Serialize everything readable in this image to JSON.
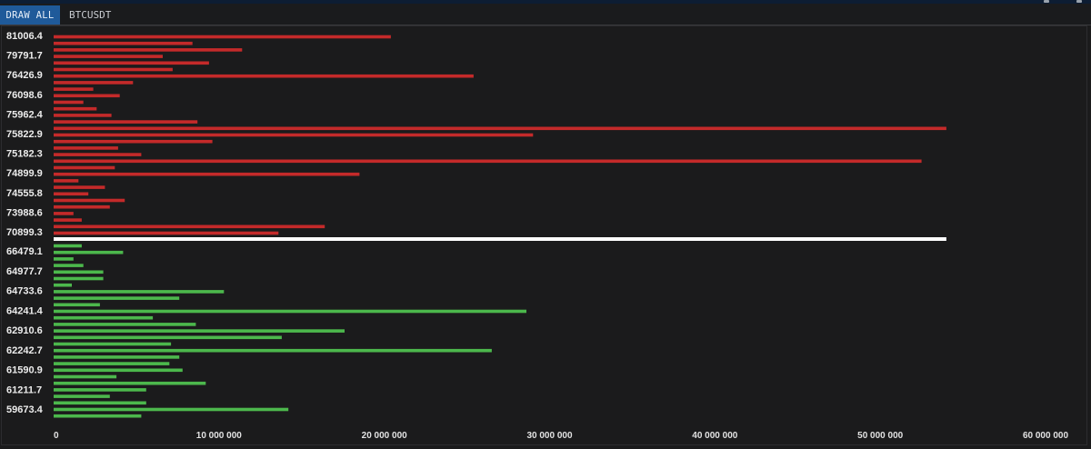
{
  "toolbar": {
    "draw_all_label": "DRAW ALL",
    "symbol_value": "BTCUSDT"
  },
  "colors": {
    "ask": "#c42a2a",
    "bid": "#4cb84c",
    "mid": "#ffffff",
    "background": "#1b1b1c"
  },
  "chart_data": {
    "type": "bar",
    "orientation": "horizontal",
    "title": "",
    "xlabel": "",
    "ylabel": "",
    "xlim": [
      0,
      60000000
    ],
    "x_ticks": [
      0,
      10000000,
      20000000,
      30000000,
      40000000,
      50000000,
      60000000
    ],
    "x_tick_labels": [
      "0",
      "10 000 000",
      "20 000 000",
      "30 000 000",
      "40 000 000",
      "50 000 000",
      "60 000 000"
    ],
    "y_tick_labels": [
      "81006.4",
      "79791.7",
      "76426.9",
      "76098.6",
      "75962.4",
      "75822.9",
      "75182.3",
      "74899.9",
      "74555.8",
      "73988.6",
      "70899.3",
      "66479.1",
      "64977.7",
      "64733.6",
      "64241.4",
      "62910.6",
      "62242.7",
      "61590.9",
      "61211.7",
      "59673.4"
    ],
    "mid_line_value": 54000000,
    "series": [
      {
        "name": "",
        "values": [
          20400000,
          8400000,
          11400000,
          6600000,
          9400000,
          7200000,
          25400000,
          4800000,
          2400000,
          4000000,
          1800000,
          2600000,
          3500000,
          8700000,
          54000000,
          29000000,
          9600000,
          3900000,
          5300000,
          52500000,
          3700000,
          18500000,
          1500000,
          3100000,
          2100000,
          4300000,
          3400000,
          1200000,
          1700000,
          16400000,
          13600000
        ]
      },
      {
        "name": "",
        "values": [
          1700000,
          4200000,
          1200000,
          1800000,
          3000000,
          3000000,
          1100000,
          10300000,
          7600000,
          2800000,
          28600000,
          6000000,
          8600000,
          17600000,
          13800000,
          7100000,
          26500000,
          7600000,
          7000000,
          7800000,
          3800000,
          9200000,
          5600000,
          3400000,
          5600000,
          14200000,
          5300000
        ]
      }
    ]
  }
}
